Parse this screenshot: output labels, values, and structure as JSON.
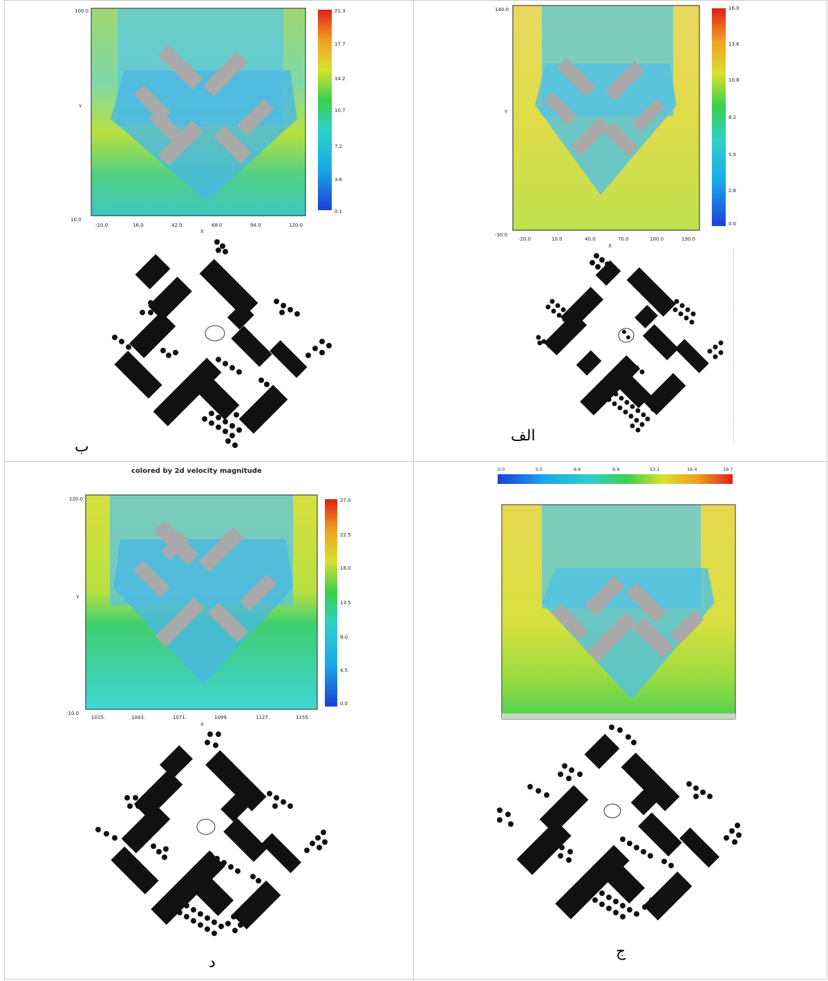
{
  "panels": {
    "b": {
      "caption": "ب",
      "cfd": {
        "header": "",
        "y_ticks_top": "100.0",
        "y_ticks_bottom": "10.0",
        "ylabel": "Y",
        "xlabel": "X",
        "x_ticks": [
          "-10.0",
          "16.0",
          "42.0",
          "68.0",
          "94.0",
          "120.0"
        ],
        "colorbar_ticks": [
          "21.3",
          "17.7",
          "14.2",
          "10.7",
          "7.2",
          "3.6",
          "0.1"
        ]
      }
    },
    "alef": {
      "caption": "الف",
      "cfd": {
        "y_ticks_top": "140.0",
        "y_ticks_bottom": "-30.0",
        "ylabel": "Y",
        "xlabel": "X",
        "x_ticks": [
          "-20.0",
          "10.0",
          "40.0",
          "70.0",
          "100.0",
          "130.0"
        ],
        "colorbar_ticks": [
          "16.0",
          "13.6",
          "10.8",
          "8.2",
          "5.5",
          "2.8",
          "0.0"
        ]
      }
    },
    "dal": {
      "caption": "د",
      "cfd": {
        "header": "colored by 2d velocity magnitude",
        "vector_ref": "",
        "y_ticks_top": "120.0",
        "y_ticks_bottom": "-10.0",
        "ylabel": "Y",
        "xlabel": "X",
        "x_ticks": [
          "1015.",
          "1043.",
          "1071.",
          "1099.",
          "1127.",
          "1155."
        ],
        "colorbar_ticks": [
          "27.0",
          "22.5",
          "18.0",
          "13.5",
          "9.0",
          "4.5",
          "0.0"
        ]
      }
    },
    "jim": {
      "caption": "ج",
      "cfd": {
        "colorbar_ticks": [
          "0.0",
          "3.3",
          "6.6",
          "9.9",
          "13.1",
          "16.4",
          "19.7"
        ]
      }
    }
  },
  "colors": {
    "scale": [
      "#1e3fd8",
      "#18a8e8",
      "#2fd1c8",
      "#3ad04a",
      "#d8e030",
      "#f0a020",
      "#e0201a"
    ],
    "building": "#a9a9a9",
    "plan_black": "#111111"
  }
}
